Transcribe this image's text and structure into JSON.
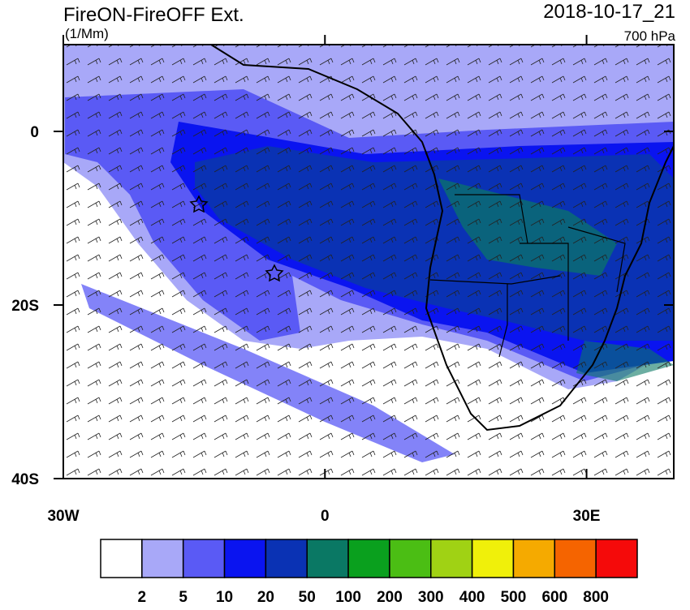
{
  "header": {
    "title": "FireON-FireOFF Ext.",
    "units": "(1/Mm)",
    "date": "2018-10-17_21",
    "level": "700 hPa"
  },
  "map": {
    "lonlim": [
      -30,
      40
    ],
    "latlim": [
      -40,
      10
    ],
    "lon_ticks": [
      {
        "value": -30,
        "label": "30W"
      },
      0,
      {
        "value": 30,
        "label": "30E"
      }
    ],
    "lat_ticks": [
      0,
      {
        "value": -20,
        "label": "20S"
      },
      {
        "value": -40,
        "label": "40S"
      }
    ]
  },
  "colorbar": {
    "colors": [
      "#ffffff",
      "#a8a8f8",
      "#5a5af5",
      "#0a14f0",
      "#0a32b4",
      "#0a7864",
      "#0aa01e",
      "#4bbe14",
      "#a0d214",
      "#f0f00a",
      "#f5aa00",
      "#f56400",
      "#f50a0a"
    ],
    "labels": [
      2,
      5,
      10,
      20,
      50,
      100,
      200,
      300,
      400,
      500,
      600,
      800
    ]
  }
}
